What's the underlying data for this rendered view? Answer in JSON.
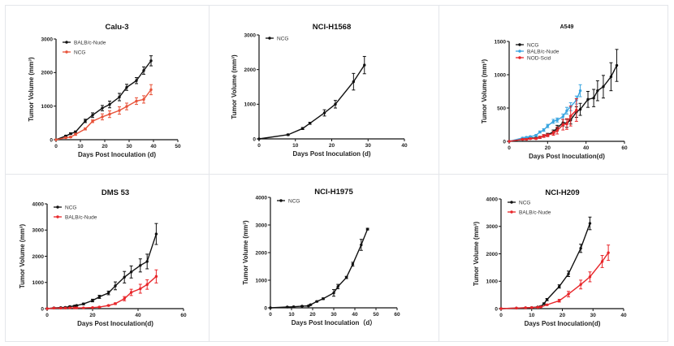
{
  "chart_data": [
    {
      "type": "line",
      "title": "Calu-3",
      "xlabel": "Days Post Inoculation (d)",
      "ylabel": "Tumor Volume (mm³)",
      "xlim": [
        0,
        50
      ],
      "ylim": [
        0,
        3000
      ],
      "xticks": [
        "0",
        "10",
        "20",
        "30",
        "40",
        "50"
      ],
      "yticks": [
        "0",
        "1000",
        "2000",
        "3000"
      ],
      "legend_position": "top-left",
      "series": [
        {
          "name": "BALB/c-Nude",
          "color": "#111111",
          "x": [
            0,
            4,
            6,
            8,
            12,
            15,
            19,
            22,
            26,
            29,
            33,
            36,
            39
          ],
          "y": [
            0,
            110,
            180,
            230,
            560,
            730,
            940,
            1050,
            1270,
            1560,
            1760,
            2060,
            2350
          ],
          "err": [
            0,
            20,
            25,
            30,
            50,
            70,
            80,
            100,
            110,
            90,
            90,
            110,
            150
          ]
        },
        {
          "name": "NCG",
          "color": "#e8533a",
          "x": [
            0,
            4,
            6,
            8,
            12,
            15,
            19,
            22,
            26,
            29,
            33,
            36,
            39
          ],
          "y": [
            0,
            60,
            80,
            160,
            320,
            550,
            680,
            760,
            870,
            990,
            1150,
            1200,
            1490
          ],
          "err": [
            0,
            15,
            20,
            30,
            30,
            40,
            90,
            100,
            110,
            100,
            100,
            110,
            150
          ]
        }
      ]
    },
    {
      "type": "line",
      "title": "NCI-H1568",
      "xlabel": "Days Post Inoculation (d)",
      "ylabel": "Tumor Volume (mm³)",
      "xlim": [
        0,
        40
      ],
      "ylim": [
        0,
        3000
      ],
      "xticks": [
        "0",
        "10",
        "20",
        "30",
        "40"
      ],
      "yticks": [
        "0",
        "1000",
        "2000",
        "3000"
      ],
      "legend_position": "top-left",
      "series": [
        {
          "name": "NCG",
          "color": "#111111",
          "x": [
            0,
            8,
            12,
            14,
            18,
            21,
            26,
            29
          ],
          "y": [
            0,
            120,
            300,
            450,
            750,
            1000,
            1650,
            2130
          ],
          "err": [
            0,
            20,
            30,
            30,
            90,
            110,
            240,
            250
          ]
        }
      ]
    },
    {
      "type": "line",
      "title": "A549",
      "xlabel": "Days Post  Inoculation(d)",
      "ylabel": "Tumor Volume (mm³)",
      "xlim": [
        0,
        60
      ],
      "ylim": [
        0,
        1500
      ],
      "xticks": [
        "0",
        "20",
        "40",
        "60"
      ],
      "yticks": [
        "0",
        "500",
        "1000",
        "1500"
      ],
      "legend_position": "top-left",
      "series": [
        {
          "name": "NCG",
          "color": "#111111",
          "x": [
            0,
            7,
            9,
            11,
            14,
            16,
            18,
            20,
            23,
            25,
            28,
            30,
            32,
            35,
            37,
            41,
            44,
            46,
            49,
            53,
            56
          ],
          "y": [
            0,
            30,
            40,
            50,
            50,
            60,
            80,
            100,
            140,
            200,
            280,
            270,
            320,
            440,
            480,
            630,
            650,
            760,
            820,
            970,
            1140
          ],
          "err": [
            0,
            10,
            10,
            10,
            10,
            15,
            20,
            20,
            30,
            40,
            50,
            60,
            60,
            80,
            90,
            120,
            130,
            150,
            170,
            210,
            240
          ]
        },
        {
          "name": "BALB/c-Nude",
          "color": "#3aa5e0",
          "x": [
            0,
            7,
            9,
            11,
            14,
            16,
            18,
            20,
            23,
            25,
            28,
            30,
            32,
            35,
            37
          ],
          "y": [
            0,
            50,
            60,
            70,
            90,
            140,
            170,
            230,
            300,
            320,
            370,
            460,
            520,
            620,
            760
          ],
          "err": [
            0,
            10,
            10,
            10,
            10,
            15,
            20,
            25,
            30,
            30,
            40,
            50,
            60,
            60,
            90
          ]
        },
        {
          "name": "NOD-Scid",
          "color": "#e8262a",
          "x": [
            0,
            7,
            9,
            11,
            14,
            16,
            18,
            20,
            23,
            25,
            28,
            30,
            32,
            35
          ],
          "y": [
            0,
            30,
            30,
            40,
            40,
            60,
            80,
            90,
            120,
            160,
            250,
            260,
            380,
            470
          ],
          "err": [
            0,
            10,
            10,
            10,
            10,
            15,
            20,
            20,
            30,
            50,
            80,
            80,
            150,
            170
          ]
        }
      ]
    },
    {
      "type": "line",
      "title": "DMS 53",
      "xlabel": "Days Post  Inoculation(d)",
      "ylabel": "Tumor Volume (mm³)",
      "xlim": [
        0,
        60
      ],
      "ylim": [
        0,
        4000
      ],
      "xticks": [
        "0",
        "20",
        "40",
        "60"
      ],
      "yticks": [
        "0",
        "1000",
        "2000",
        "3000",
        "4000"
      ],
      "legend_position": "top-left",
      "series": [
        {
          "name": "NCG",
          "color": "#111111",
          "x": [
            0,
            3,
            6,
            8,
            10,
            12,
            13,
            16,
            20,
            23,
            27,
            30,
            34,
            37,
            41,
            44,
            48
          ],
          "y": [
            0,
            30,
            40,
            50,
            80,
            100,
            120,
            180,
            310,
            450,
            600,
            870,
            1200,
            1400,
            1650,
            1800,
            2850
          ],
          "err": [
            0,
            10,
            10,
            10,
            15,
            20,
            20,
            30,
            50,
            60,
            70,
            150,
            220,
            230,
            250,
            280,
            400
          ]
        },
        {
          "name": "BALB/c-Nude",
          "color": "#e8262a",
          "x": [
            0,
            3,
            6,
            8,
            10,
            12,
            13,
            16,
            20,
            23,
            27,
            30,
            34,
            37,
            41,
            44,
            48
          ],
          "y": [
            0,
            20,
            20,
            20,
            30,
            30,
            30,
            30,
            40,
            60,
            120,
            190,
            380,
            620,
            760,
            920,
            1230
          ],
          "err": [
            0,
            5,
            5,
            5,
            5,
            5,
            5,
            5,
            10,
            15,
            20,
            30,
            80,
            120,
            170,
            180,
            250
          ]
        }
      ]
    },
    {
      "type": "line",
      "title": "NCI-H1975",
      "xlabel": "Days Post Inoculation（d）",
      "ylabel": "Tumor Volume (mm³)",
      "xlim": [
        0,
        60
      ],
      "ylim": [
        0,
        4000
      ],
      "xticks": [
        "0",
        "10",
        "20",
        "30",
        "40",
        "50",
        "60"
      ],
      "yticks": [
        "0",
        "1000",
        "2000",
        "3000",
        "4000"
      ],
      "legend_position": "top-left",
      "series": [
        {
          "name": "NCG",
          "color": "#111111",
          "x": [
            0,
            8,
            11,
            15,
            18,
            19,
            22,
            25,
            30,
            32,
            36,
            39,
            43,
            46
          ],
          "y": [
            0,
            30,
            40,
            60,
            70,
            110,
            230,
            330,
            540,
            770,
            1100,
            1580,
            2280,
            2850
          ],
          "err": [
            0,
            10,
            10,
            15,
            15,
            20,
            20,
            30,
            120,
            80,
            40,
            70,
            200,
            30
          ]
        }
      ]
    },
    {
      "type": "line",
      "title": "NCI-H209",
      "xlabel": "Days Post Inoculation(d)",
      "ylabel": "Tumor Volume (mm³)",
      "xlim": [
        0,
        40
      ],
      "ylim": [
        0,
        4000
      ],
      "xticks": [
        "0",
        "10",
        "20",
        "30",
        "40"
      ],
      "yticks": [
        "0",
        "1000",
        "2000",
        "3000",
        "4000"
      ],
      "legend_position": "top-left",
      "series": [
        {
          "name": "NCG",
          "color": "#111111",
          "x": [
            0,
            5,
            8,
            10,
            12,
            13,
            14,
            15,
            19,
            22,
            26,
            29
          ],
          "y": [
            0,
            20,
            30,
            40,
            60,
            80,
            180,
            330,
            810,
            1270,
            2200,
            3110
          ],
          "err": [
            0,
            5,
            10,
            10,
            15,
            20,
            30,
            40,
            60,
            100,
            150,
            230
          ]
        },
        {
          "name": "BALB/c-Nude",
          "color": "#e8262a",
          "x": [
            0,
            5,
            8,
            10,
            12,
            13,
            15,
            19,
            22,
            26,
            29,
            33,
            35
          ],
          "y": [
            0,
            20,
            30,
            40,
            50,
            60,
            140,
            290,
            530,
            880,
            1160,
            1720,
            2040
          ],
          "err": [
            0,
            5,
            5,
            10,
            10,
            10,
            20,
            50,
            100,
            160,
            180,
            220,
            280
          ]
        }
      ]
    }
  ]
}
